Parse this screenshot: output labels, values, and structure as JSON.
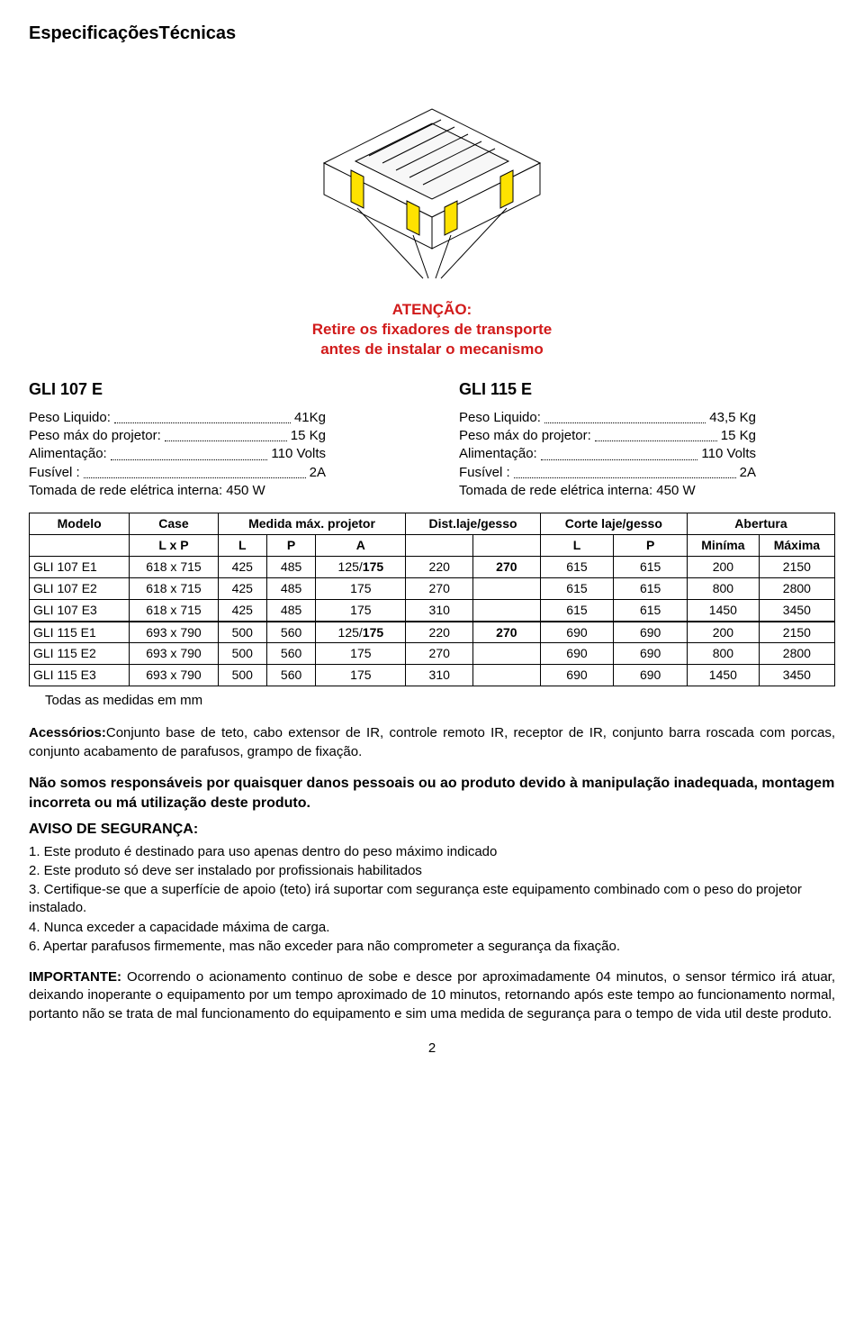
{
  "page_title": "EspecificaçõesTécnicas",
  "warning": {
    "l1": "ATENÇÃO:",
    "l2": "Retire os fixadores de transporte",
    "l3": "antes de instalar o mecanismo",
    "color": "#d11a1a"
  },
  "diagram": {
    "highlight_color": "#fee200",
    "stroke": "#000000"
  },
  "specs_left": {
    "heading": "GLI 107 E",
    "rows": [
      {
        "label": "Peso Liquido:",
        "value": "41Kg"
      },
      {
        "label": "Peso máx do projetor:",
        "value": "15 Kg"
      },
      {
        "label": "Alimentação:",
        "value": "110 Volts"
      },
      {
        "label": "Fusível :",
        "value": "2A"
      }
    ],
    "last": "Tomada de rede elétrica interna: 450 W"
  },
  "specs_right": {
    "heading": "GLI 115 E",
    "rows": [
      {
        "label": "Peso Liquido:",
        "value": "43,5 Kg"
      },
      {
        "label": "Peso máx do projetor:",
        "value": "15 Kg"
      },
      {
        "label": "Alimentação:",
        "value": "110 Volts"
      },
      {
        "label": "Fusível :",
        "value": "2A"
      }
    ],
    "last": "Tomada de rede elétrica interna: 450 W"
  },
  "table": {
    "header1": [
      "Modelo",
      "Case",
      "Medida máx. projetor",
      "Dist.laje/gesso",
      "Corte laje/gesso",
      "Abertura"
    ],
    "header2": [
      "",
      "L x P",
      "L",
      "P",
      "A",
      "",
      "",
      "L",
      "P",
      "Miníma",
      "Máxima"
    ],
    "rows_top": [
      [
        "GLI 107 E1",
        "618 x 715",
        "425",
        "485",
        "125/175",
        "220",
        "270",
        "615",
        "615",
        "200",
        "2150"
      ],
      [
        "GLI 107 E2",
        "618 x 715",
        "425",
        "485",
        "175",
        "270",
        "",
        "615",
        "615",
        "800",
        "2800"
      ],
      [
        "GLI 107 E3",
        "618 x 715",
        "425",
        "485",
        "175",
        "310",
        "",
        "615",
        "615",
        "1450",
        "3450"
      ]
    ],
    "rows_bot": [
      [
        "GLI 115 E1",
        "693 x 790",
        "500",
        "560",
        "125/175",
        "220",
        "270",
        "690",
        "690",
        "200",
        "2150"
      ],
      [
        "GLI 115 E2",
        "693 x 790",
        "500",
        "560",
        "175",
        "270",
        "",
        "690",
        "690",
        "800",
        "2800"
      ],
      [
        "GLI 115 E3",
        "693 x 790",
        "500",
        "560",
        "175",
        "310",
        "",
        "690",
        "690",
        "1450",
        "3450"
      ]
    ],
    "bold_cells": {
      "125/175": "175",
      "270_col7": true
    }
  },
  "footnote": "Todas as medidas em mm",
  "acessorios": {
    "label": "Acessórios:",
    "text": "Conjunto base de teto, cabo extensor de IR, controle remoto IR, receptor de IR, conjunto barra roscada com porcas, conjunto acabamento de  parafusos, grampo  de fixação."
  },
  "disclaimer": "Não somos responsáveis por quaisquer danos pessoais ou ao produto devido à manipulação inadequada,  montagem incorreta ou má utilização deste produto.",
  "aviso_heading": "AVISO DE SEGURANÇA:",
  "safety": [
    "1. Este produto é destinado para uso apenas dentro do peso máximo indicado",
    "2. Este produto só deve ser instalado por profissionais habilitados",
    "3. Certifique-se que a superfície de apoio (teto) irá suportar com segurança este equipamento combinado com o peso do projetor instalado.",
    "4. Nunca exceder a capacidade máxima de carga.",
    "6. Apertar parafusos firmemente, mas não exceder para não comprometer a segurança da fixação."
  ],
  "importante": {
    "label": "IMPORTANTE:",
    "text": " Ocorrendo o acionamento continuo de sobe e desce por aproximadamente 04 minutos, o sensor térmico irá atuar, deixando inoperante o equipamento por um tempo aproximado de 10 minutos, retornando após este tempo ao funcionamento normal, portanto não se trata de mal funcionamento do equipamento e sim uma medida de segurança para o tempo de vida util deste produto."
  },
  "page_number": "2"
}
